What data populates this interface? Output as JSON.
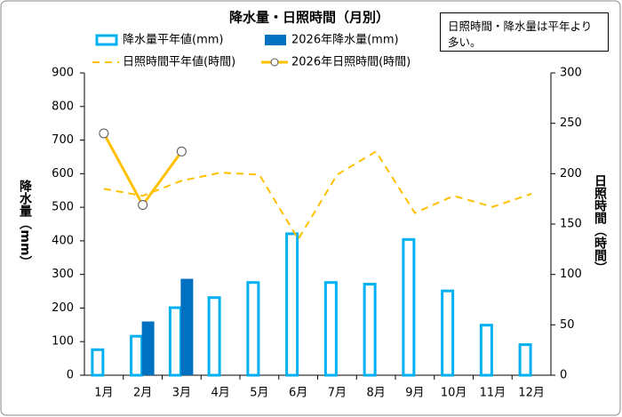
{
  "chart_data": {
    "type": "bar_line",
    "title": "降水量・日照時間（月別）",
    "annotation": "日照時間・降水量は平年より多い。",
    "ylabel": "降水量（mm）",
    "y2label": "日照時間（時間）",
    "categories": [
      "1月",
      "2月",
      "3月",
      "4月",
      "5月",
      "6月",
      "7月",
      "8月",
      "9月",
      "10月",
      "11月",
      "12月"
    ],
    "ylim": [
      0,
      900
    ],
    "yticks": [
      0,
      100,
      200,
      300,
      400,
      500,
      600,
      700,
      800,
      900
    ],
    "y2lim": [
      0,
      300
    ],
    "y2ticks": [
      0,
      50,
      100,
      150,
      200,
      250,
      300
    ],
    "series": [
      {
        "name": "降水量平年値(mm)",
        "kind": "bar-outline",
        "color": "#00b0f0",
        "values": [
          80,
          120,
          205,
          235,
          280,
          425,
          280,
          275,
          408,
          255,
          153,
          95
        ]
      },
      {
        "name": "2026年降水量(mm)",
        "kind": "bar",
        "color": "#0070c0",
        "values": [
          null,
          160,
          287,
          null,
          null,
          null,
          null,
          null,
          null,
          null,
          null,
          null
        ]
      },
      {
        "name": "日照時間平年値(時間)",
        "kind": "dashed-line",
        "axis": "y2",
        "color": "#ffc000",
        "values": [
          185,
          178,
          193,
          201,
          199,
          135,
          199,
          222,
          161,
          178,
          167,
          180
        ]
      },
      {
        "name": "2026年日照時間(時間)",
        "kind": "line-marker",
        "axis": "y2",
        "color": "#ffc000",
        "values": [
          240,
          169,
          222,
          null,
          null,
          null,
          null,
          null,
          null,
          null,
          null,
          null
        ]
      }
    ]
  }
}
